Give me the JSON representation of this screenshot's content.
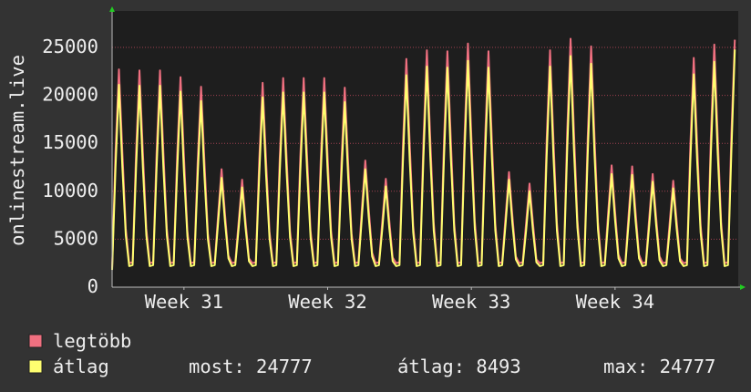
{
  "chart_data": {
    "type": "line",
    "ylabel": "onlinestream.live",
    "xlim": [
      0,
      30.5
    ],
    "xticks": [
      {
        "value": 3.5,
        "label": "Week 31"
      },
      {
        "value": 10.5,
        "label": "Week 32"
      },
      {
        "value": 17.5,
        "label": "Week 33"
      },
      {
        "value": 24.5,
        "label": "Week 34"
      }
    ],
    "ylim": [
      0,
      28800
    ],
    "yticks": [
      0,
      5000,
      10000,
      15000,
      20000,
      25000
    ],
    "grid": true,
    "x": [
      0,
      0.167,
      0.333,
      0.5,
      0.667,
      0.833,
      1,
      1.167,
      1.333,
      1.5,
      1.667,
      1.833,
      2,
      2.167,
      2.333,
      2.5,
      2.667,
      2.833,
      3,
      3.167,
      3.333,
      3.5,
      3.667,
      3.833,
      4,
      4.167,
      4.333,
      4.5,
      4.667,
      4.833,
      5,
      5.167,
      5.333,
      5.5,
      5.667,
      5.833,
      6,
      6.167,
      6.333,
      6.5,
      6.667,
      6.833,
      7,
      7.167,
      7.333,
      7.5,
      7.667,
      7.833,
      8,
      8.167,
      8.333,
      8.5,
      8.667,
      8.833,
      9,
      9.167,
      9.333,
      9.5,
      9.667,
      9.833,
      10,
      10.167,
      10.333,
      10.5,
      10.667,
      10.833,
      11,
      11.167,
      11.333,
      11.5,
      11.667,
      11.833,
      12,
      12.167,
      12.333,
      12.5,
      12.667,
      12.833,
      13,
      13.167,
      13.333,
      13.5,
      13.667,
      13.833,
      14,
      14.167,
      14.333,
      14.5,
      14.667,
      14.833,
      15,
      15.167,
      15.333,
      15.5,
      15.667,
      15.833,
      16,
      16.167,
      16.333,
      16.5,
      16.667,
      16.833,
      17,
      17.167,
      17.333,
      17.5,
      17.667,
      17.833,
      18,
      18.167,
      18.333,
      18.5,
      18.667,
      18.833,
      19,
      19.167,
      19.333,
      19.5,
      19.667,
      19.833,
      20,
      20.167,
      20.333,
      20.5,
      20.667,
      20.833,
      21,
      21.167,
      21.333,
      21.5,
      21.667,
      21.833,
      22,
      22.167,
      22.333,
      22.5,
      22.667,
      22.833,
      23,
      23.167,
      23.333,
      23.5,
      23.667,
      23.833,
      24,
      24.167,
      24.333,
      24.5,
      24.667,
      24.833,
      25,
      25.167,
      25.333,
      25.5,
      25.667,
      25.833,
      26,
      26.167,
      26.333,
      26.5,
      26.667,
      26.833,
      27,
      27.167,
      27.333,
      27.5,
      27.667,
      27.833,
      28,
      28.167,
      28.333,
      28.5,
      28.667,
      28.833,
      29,
      29.167,
      29.333,
      29.5,
      29.667,
      29.833,
      30,
      30.167,
      30.333
    ],
    "series": [
      {
        "name": "legtöbb",
        "color": "#f07080",
        "values": [
          2000,
          14100,
          22700,
          14100,
          6100,
          2500,
          2600,
          14000,
          22600,
          14000,
          6100,
          2500,
          2600,
          14000,
          22600,
          14000,
          6100,
          2500,
          2600,
          13600,
          21900,
          13600,
          5900,
          2500,
          2600,
          13000,
          20900,
          13000,
          5600,
          2500,
          2600,
          7600,
          12300,
          7600,
          3300,
          2500,
          2600,
          6900,
          11200,
          6900,
          3000,
          2500,
          2600,
          13200,
          21300,
          13200,
          5800,
          2500,
          2600,
          13500,
          21800,
          13500,
          5900,
          2500,
          2600,
          13500,
          21800,
          13500,
          5900,
          2500,
          2600,
          13500,
          21800,
          13500,
          5900,
          2500,
          2600,
          12900,
          20800,
          12900,
          5600,
          2500,
          2600,
          8200,
          13200,
          8200,
          3600,
          2500,
          2600,
          7000,
          11300,
          7000,
          3100,
          2500,
          2600,
          14800,
          23800,
          14800,
          6400,
          2500,
          2600,
          15300,
          24700,
          15300,
          6700,
          2500,
          2600,
          15300,
          24600,
          15300,
          6600,
          2500,
          2600,
          15700,
          25400,
          15700,
          6900,
          2500,
          2600,
          15300,
          24600,
          15300,
          6600,
          2500,
          2600,
          7400,
          12000,
          7400,
          3200,
          2500,
          2600,
          6700,
          10800,
          6700,
          2900,
          2500,
          2600,
          15300,
          24700,
          15300,
          6700,
          2500,
          2600,
          16100,
          25900,
          16100,
          7000,
          2500,
          2600,
          15600,
          25100,
          15600,
          6800,
          2500,
          2600,
          7900,
          12700,
          7900,
          3400,
          2500,
          2600,
          7800,
          12600,
          7800,
          3400,
          2500,
          2600,
          7300,
          11800,
          7300,
          3200,
          2500,
          2600,
          6900,
          11100,
          6900,
          3000,
          2500,
          2600,
          14800,
          23900,
          14800,
          6500,
          2500,
          2600,
          15700,
          25300,
          15700,
          6800,
          2500,
          2600,
          16000,
          25800
        ]
      },
      {
        "name": "átlag",
        "color": "#ffff70",
        "values": [
          1800,
          12500,
          21100,
          12500,
          5400,
          2200,
          2300,
          12400,
          21000,
          12400,
          5400,
          2200,
          2300,
          12400,
          21000,
          12400,
          5400,
          2200,
          2300,
          12000,
          20400,
          12000,
          5300,
          2200,
          2300,
          11500,
          19400,
          11500,
          5000,
          2200,
          2300,
          6800,
          11400,
          6800,
          3000,
          2200,
          2300,
          6200,
          10400,
          6200,
          2700,
          2200,
          2300,
          11700,
          19800,
          11700,
          5100,
          2200,
          2300,
          12000,
          20300,
          12000,
          5200,
          2200,
          2300,
          12000,
          20300,
          12000,
          5200,
          2200,
          2300,
          12000,
          20300,
          12000,
          5200,
          2200,
          2300,
          11400,
          19300,
          11400,
          5000,
          2200,
          2300,
          7300,
          12300,
          7300,
          3200,
          2200,
          2300,
          6200,
          10500,
          6200,
          2700,
          2200,
          2300,
          13100,
          22100,
          13100,
          5700,
          2200,
          2300,
          13600,
          23000,
          13600,
          5900,
          2200,
          2300,
          13500,
          22900,
          13500,
          5900,
          2200,
          2300,
          14000,
          23600,
          14000,
          6100,
          2200,
          2300,
          13500,
          22900,
          13500,
          5900,
          2200,
          2300,
          6600,
          11200,
          6600,
          2900,
          2200,
          2300,
          5900,
          10000,
          5900,
          2600,
          2200,
          2300,
          13600,
          23000,
          13600,
          5900,
          2200,
          2300,
          14200,
          24100,
          14200,
          6200,
          2200,
          2300,
          13800,
          23300,
          13800,
          6000,
          2200,
          2300,
          7000,
          11800,
          7000,
          3000,
          2200,
          2300,
          6900,
          11700,
          6900,
          3000,
          2200,
          2300,
          6500,
          11000,
          6500,
          2800,
          2200,
          2300,
          6100,
          10300,
          6100,
          2700,
          2200,
          2300,
          13100,
          22200,
          13100,
          5700,
          2200,
          2300,
          13900,
          23500,
          13900,
          6100,
          2200,
          2300,
          14200,
          24777
        ]
      }
    ],
    "stats": [
      {
        "label": "most:",
        "value": 24777
      },
      {
        "label": "átlag:",
        "value": 8493
      },
      {
        "label": "max:",
        "value": 24777
      }
    ]
  }
}
